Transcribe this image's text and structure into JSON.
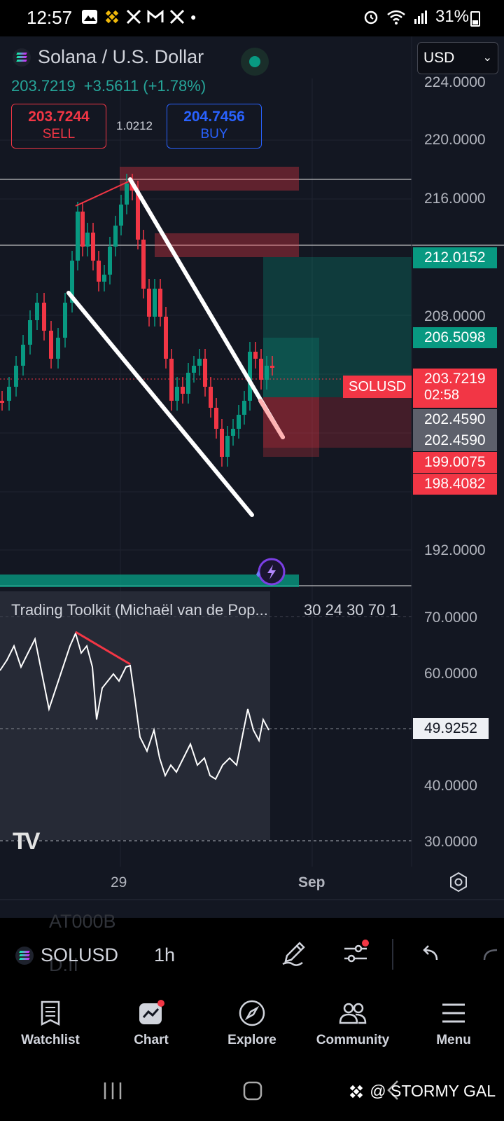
{
  "status_bar": {
    "time": "12:57",
    "battery": "31%",
    "notification_icons": [
      "gallery-icon",
      "binance-icon",
      "x-icon",
      "gmail-icon",
      "x-icon",
      "dot"
    ]
  },
  "header": {
    "pair": "Solana / U.S. Dollar",
    "currency": "USD",
    "last_price": "203.7219",
    "change": "+3.5611",
    "change_pct": "(+1.78%)",
    "sell_price": "203.7244",
    "sell_label": "SELL",
    "spread": "1.0212",
    "buy_price": "204.7456",
    "buy_label": "BUY"
  },
  "price_axis": {
    "labels": [
      "224.0000",
      "220.0000",
      "216.0000",
      "208.0000",
      "192.0000"
    ],
    "tags": {
      "t1": "212.0152",
      "t2": "206.5098",
      "symbol": "SOLUSD",
      "current": "203.7219",
      "countdown": "02:58",
      "grey1": "202.4590",
      "grey2": "202.4590",
      "red1": "199.0075",
      "red2": "198.4082"
    }
  },
  "indicator": {
    "title": "Trading Toolkit (Michaël van de Pop...",
    "params": "30 24 30 70 1",
    "axis_labels": [
      "70.0000",
      "60.0000",
      "40.0000",
      "30.0000"
    ],
    "current_value": "49.9252"
  },
  "time_axis": {
    "labels": [
      "29",
      "Sep"
    ]
  },
  "toolbar": {
    "symbol": "SOLUSD",
    "timeframe": "1h",
    "ghost_top": "AT000B",
    "ghost_bottom": "D.II"
  },
  "nav": {
    "items": [
      {
        "label": "Watchlist",
        "icon": "watchlist-icon"
      },
      {
        "label": "Chart",
        "icon": "chart-icon"
      },
      {
        "label": "Explore",
        "icon": "compass-icon"
      },
      {
        "label": "Community",
        "icon": "community-icon"
      },
      {
        "label": "Menu",
        "icon": "menu-icon"
      }
    ]
  },
  "watermark": "@ STORMY GAL",
  "colors": {
    "background": "#131722",
    "up": "#089981",
    "down": "#f23645",
    "buy": "#2962ff"
  }
}
